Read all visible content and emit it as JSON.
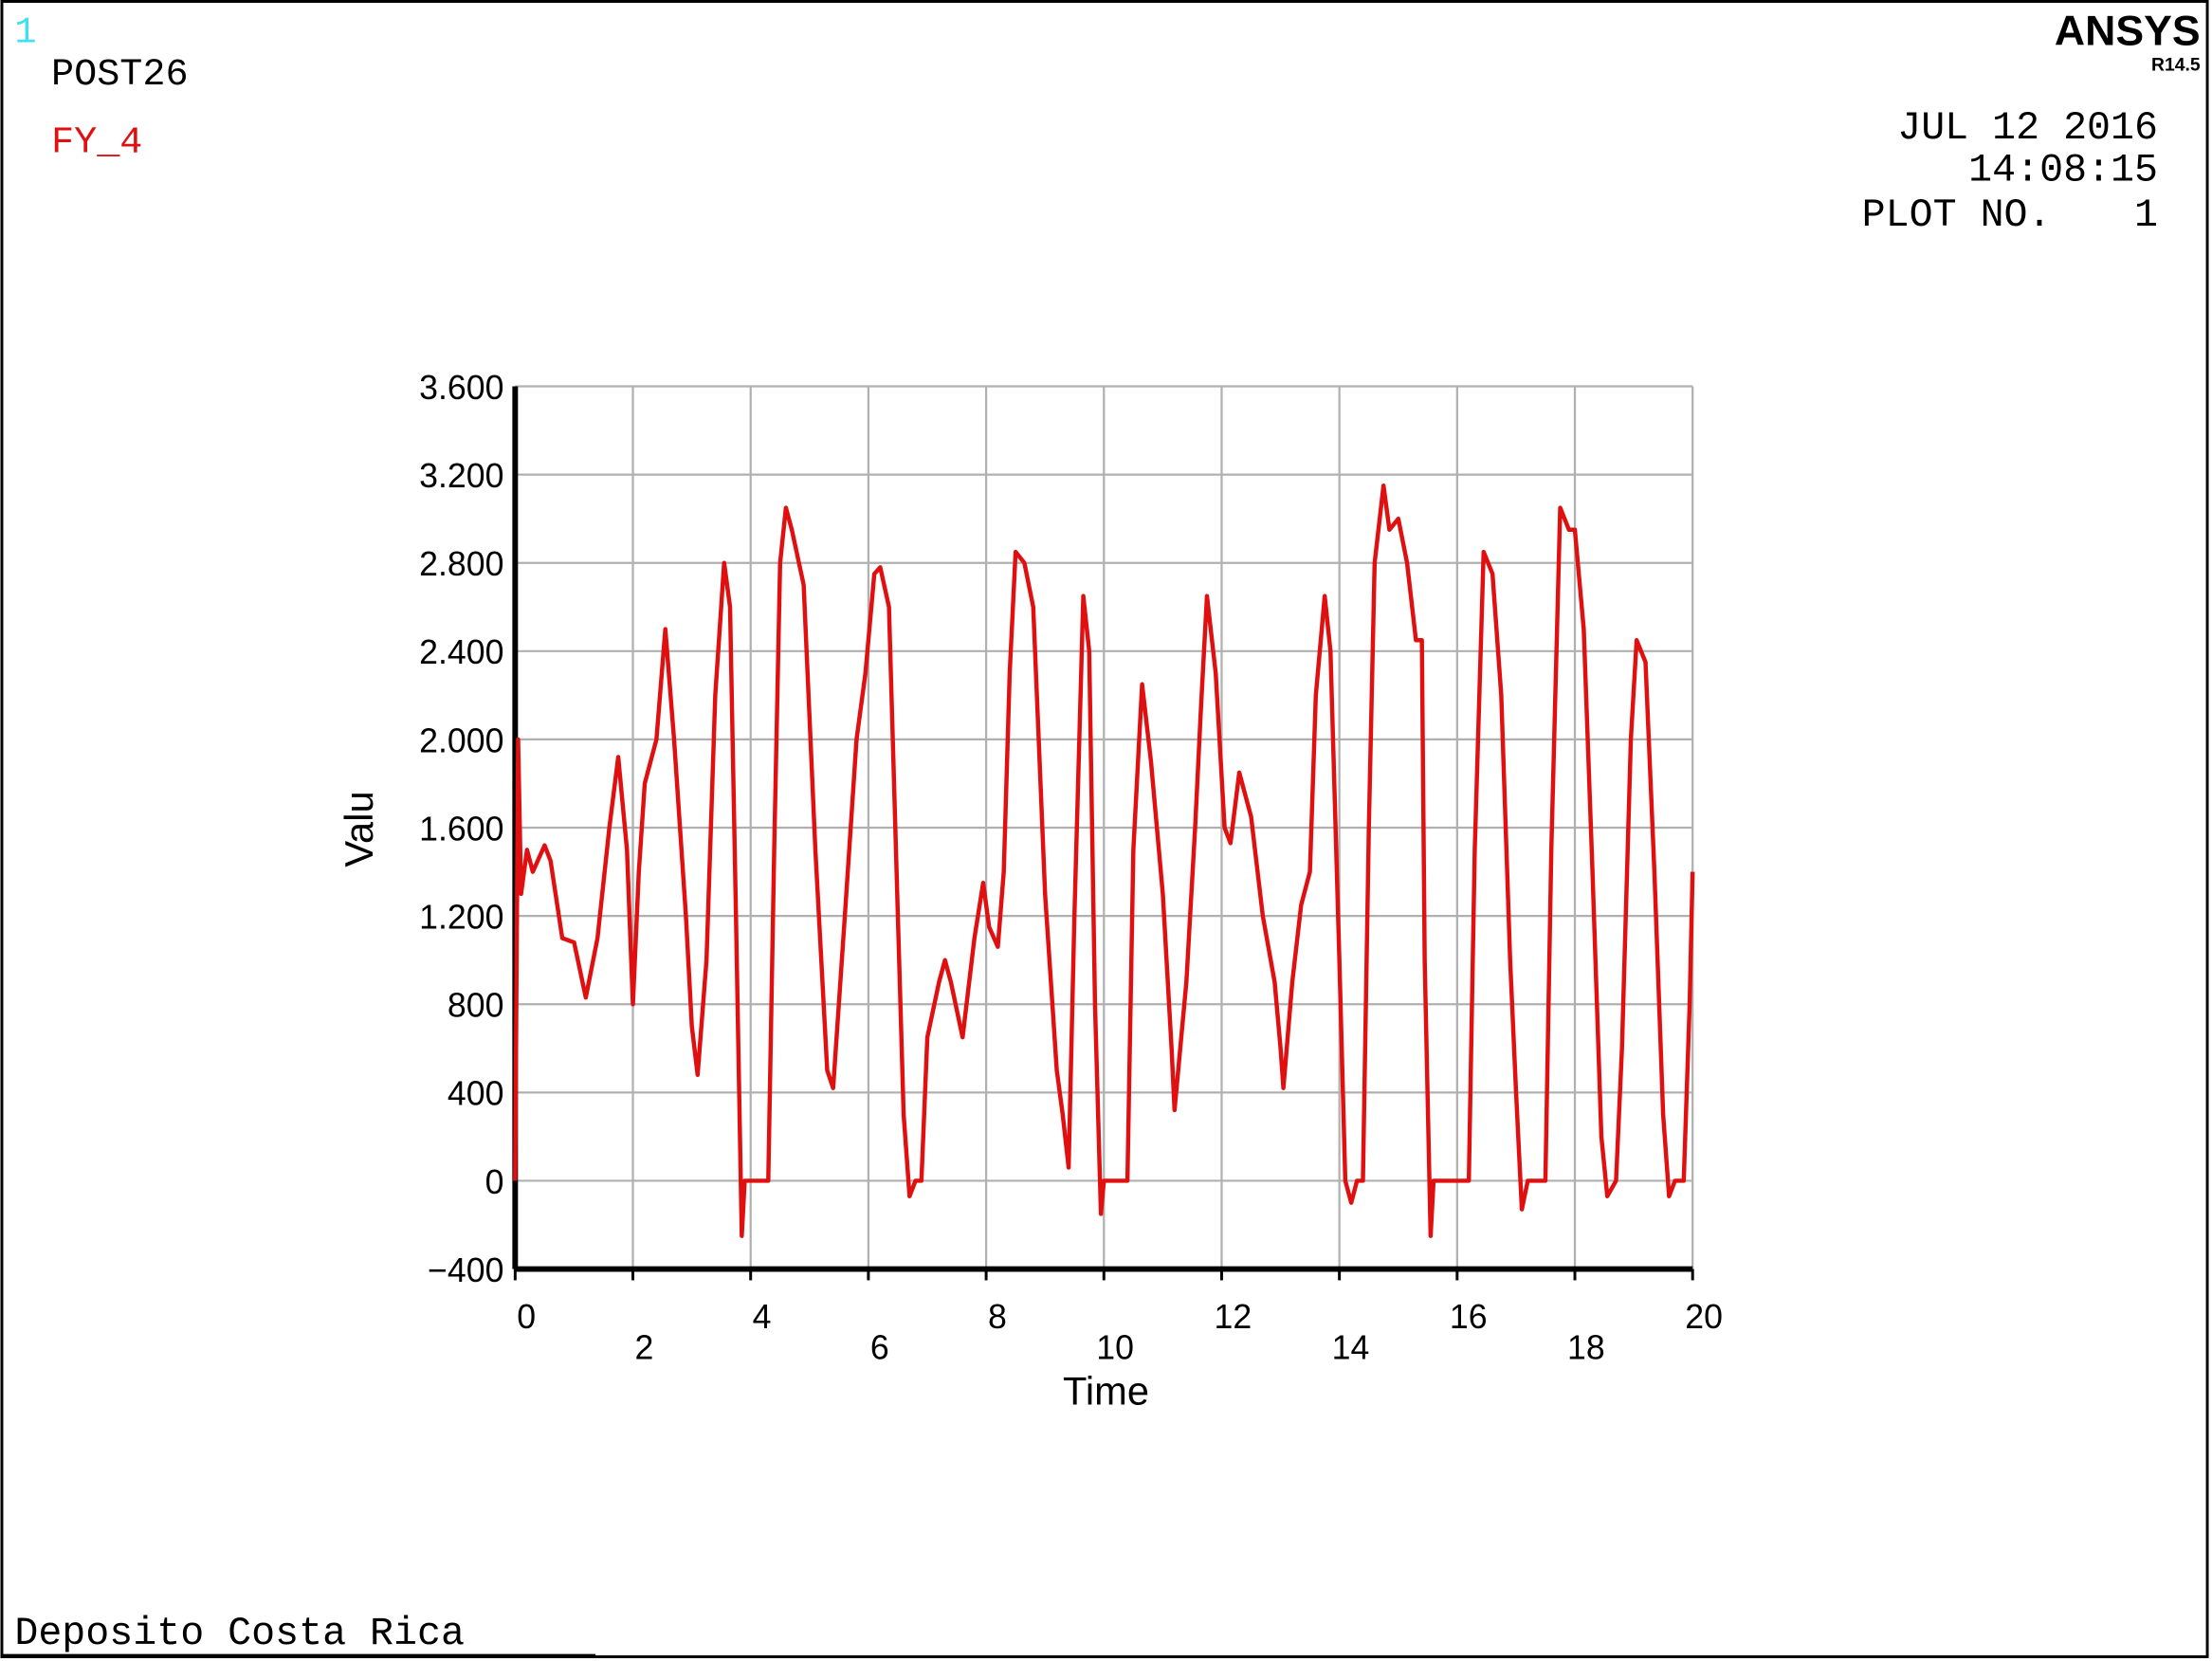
{
  "header": {
    "window_number": "1",
    "program": "POST26",
    "product": "ANSYS",
    "release": "R14.5",
    "date": "JUL 12 2016",
    "time": "14:08:15",
    "plot_label": "PLOT NO.",
    "plot_number": "1",
    "footer": "Deposito Costa Rica"
  },
  "chart_data": {
    "type": "line",
    "x_label": "Time",
    "y_label": "Valu",
    "x": [
      0,
      0.05,
      0.1,
      0.2,
      0.3,
      0.5,
      0.6,
      0.8,
      1.0,
      1.2,
      1.4,
      1.6,
      1.75,
      1.9,
      2.0,
      2.1,
      2.2,
      2.4,
      2.55,
      2.7,
      2.9,
      3.0,
      3.1,
      3.25,
      3.4,
      3.55,
      3.65,
      3.75,
      3.85,
      3.9,
      4.3,
      4.4,
      4.5,
      4.6,
      4.7,
      4.9,
      5.1,
      5.3,
      5.4,
      5.6,
      5.8,
      5.95,
      6.1,
      6.2,
      6.35,
      6.5,
      6.6,
      6.7,
      6.8,
      6.9,
      7.0,
      7.2,
      7.3,
      7.4,
      7.6,
      7.8,
      7.95,
      8.05,
      8.2,
      8.3,
      8.4,
      8.5,
      8.65,
      8.8,
      9.0,
      9.2,
      9.3,
      9.4,
      9.5,
      9.65,
      9.75,
      9.85,
      9.95,
      10.0,
      10.4,
      10.5,
      10.65,
      10.8,
      11.0,
      11.15,
      11.2,
      11.4,
      11.55,
      11.65,
      11.75,
      11.9,
      12.05,
      12.15,
      12.3,
      12.5,
      12.7,
      12.9,
      13.0,
      13.05,
      13.2,
      13.35,
      13.5,
      13.6,
      13.75,
      13.85,
      14.0,
      14.1,
      14.2,
      14.3,
      14.4,
      14.5,
      14.6,
      14.75,
      14.85,
      15.0,
      15.15,
      15.3,
      15.4,
      15.45,
      15.55,
      15.6,
      16.2,
      16.3,
      16.45,
      16.6,
      16.75,
      16.9,
      17.0,
      17.1,
      17.2,
      17.5,
      17.6,
      17.75,
      17.9,
      18.0,
      18.15,
      18.3,
      18.45,
      18.55,
      18.7,
      18.8,
      18.95,
      19.05,
      19.2,
      19.35,
      19.5,
      19.6,
      19.7,
      19.85,
      19.95,
      20.0
    ],
    "series": [
      {
        "name": "FY_4",
        "color": "#e01010",
        "values": [
          0,
          2000,
          1300,
          1500,
          1400,
          1520,
          1450,
          1100,
          1080,
          830,
          1100,
          1600,
          1920,
          1500,
          800,
          1400,
          1800,
          2000,
          2500,
          2000,
          1200,
          700,
          480,
          1000,
          2200,
          2800,
          2600,
          1200,
          -250,
          0,
          0,
          1500,
          2800,
          3050,
          2950,
          2700,
          1500,
          500,
          420,
          1200,
          2000,
          2300,
          2750,
          2780,
          2600,
          1200,
          300,
          -70,
          0,
          0,
          650,
          900,
          1000,
          900,
          650,
          1100,
          1350,
          1150,
          1060,
          1400,
          2300,
          2850,
          2800,
          2600,
          1300,
          500,
          300,
          60,
          1200,
          2650,
          2400,
          800,
          -150,
          0,
          0,
          1500,
          2250,
          1900,
          1300,
          600,
          320,
          900,
          1600,
          2150,
          2650,
          2300,
          1600,
          1530,
          1850,
          1650,
          1200,
          900,
          600,
          420,
          900,
          1250,
          1400,
          2200,
          2650,
          2400,
          1000,
          0,
          -100,
          0,
          0,
          1600,
          2800,
          3150,
          2950,
          3000,
          2800,
          2450,
          2450,
          1000,
          -250,
          0,
          0,
          1500,
          2850,
          2750,
          2200,
          1000,
          400,
          -130,
          0,
          0,
          1500,
          3050,
          2950,
          2950,
          2500,
          1400,
          200,
          -70,
          0,
          600,
          2000,
          2450,
          2350,
          1400,
          300,
          -70,
          0,
          0,
          800,
          1400
        ]
      }
    ],
    "xlim": [
      0,
      20
    ],
    "xticks": [
      0,
      2,
      4,
      6,
      8,
      10,
      12,
      14,
      16,
      18,
      20
    ],
    "ylim": [
      -400,
      3600
    ],
    "yticks": [
      {
        "value": -400,
        "label": "−400"
      },
      0,
      400,
      800,
      {
        "value": 1200,
        "label": "1.200"
      },
      {
        "value": 1600,
        "label": "1.600"
      },
      {
        "value": 2000,
        "label": "2.000"
      },
      {
        "value": 2400,
        "label": "2.400"
      },
      {
        "value": 2800,
        "label": "2.800"
      },
      {
        "value": 3200,
        "label": "3.200"
      },
      {
        "value": 3600,
        "label": "3.600"
      }
    ],
    "grid": true
  }
}
